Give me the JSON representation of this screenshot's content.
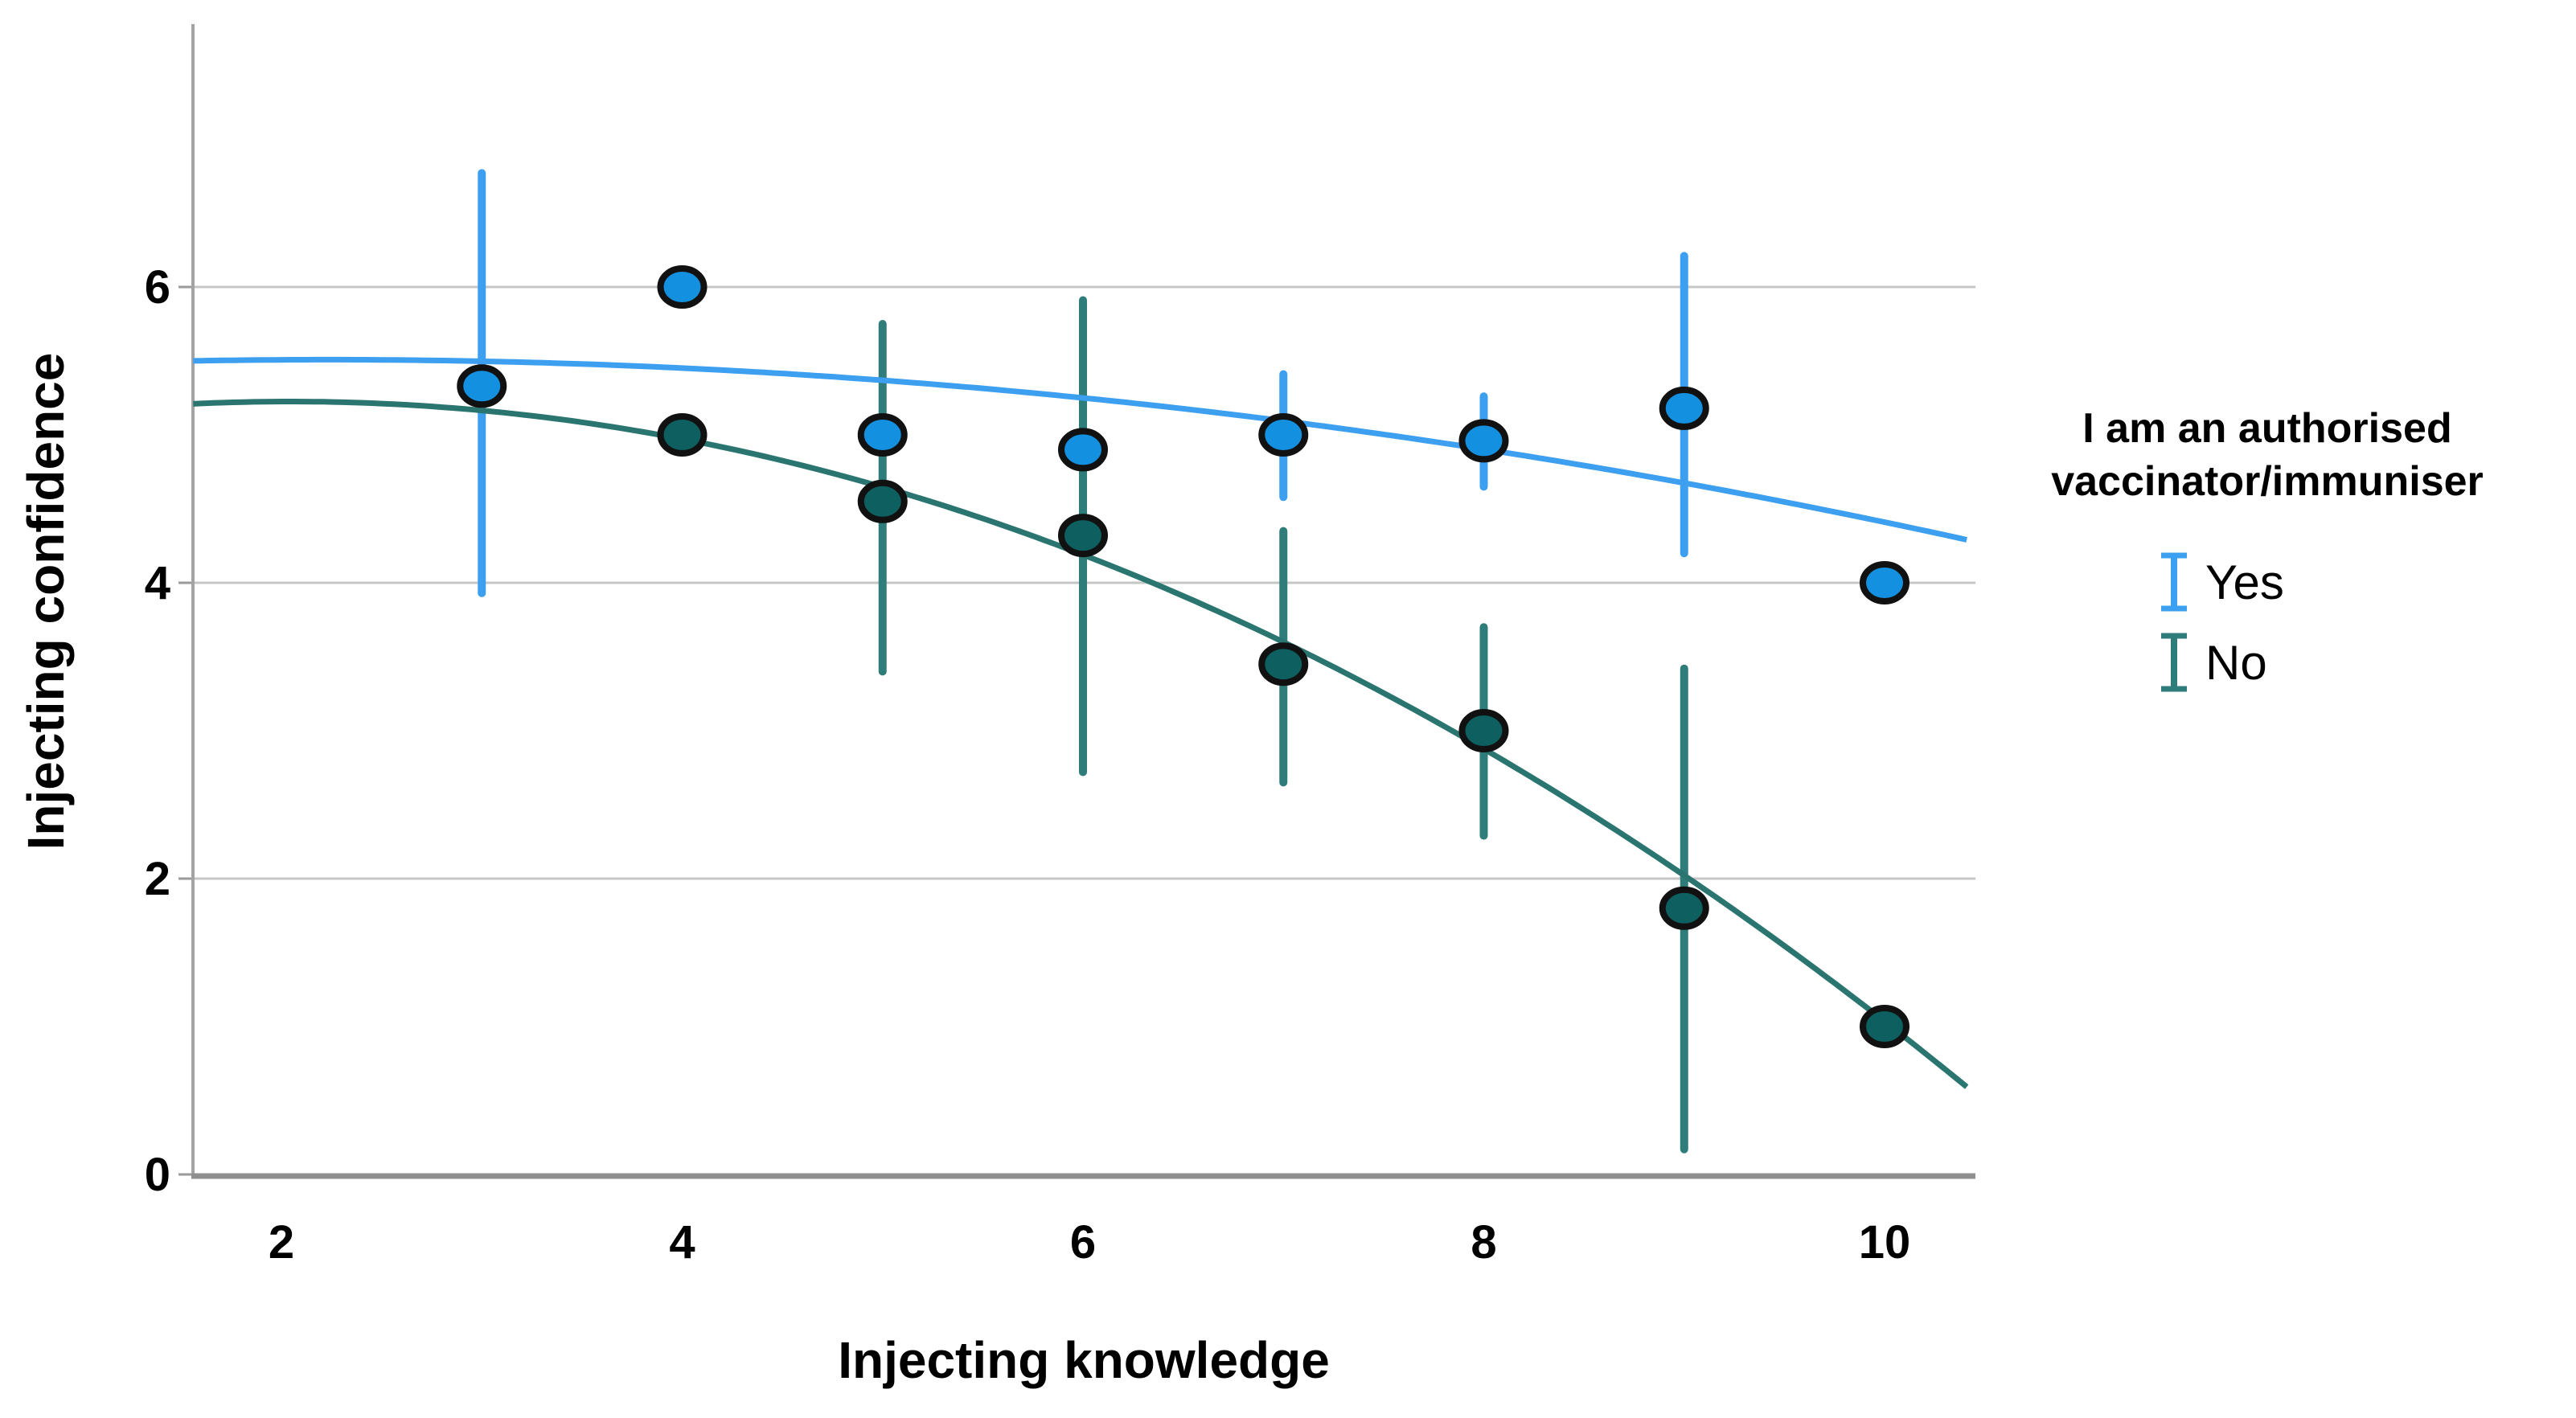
{
  "chart_data": {
    "type": "scatter",
    "title": "",
    "xlabel": "Injecting knowledge",
    "ylabel": "Injecting confidence",
    "x_ticks": [
      2,
      4,
      6,
      8,
      10
    ],
    "y_ticks": [
      0,
      2,
      4,
      6
    ],
    "xlim": [
      1.56,
      10.45
    ],
    "ylim": [
      0,
      7.78
    ],
    "grid": "horizontal-only",
    "colors": {
      "gridline": "#c6c6c6",
      "x_axis": "#8f8f8f",
      "y_axis": "#a3a3a3",
      "tick_mark": "#9a9a9a",
      "marker_outline": "#111111",
      "text": "#000000"
    },
    "legend": {
      "position": "right",
      "title_lines": [
        "I am an authorised",
        "vaccinator/immuniser"
      ],
      "entries": [
        {
          "label": "Yes",
          "color": "#3d9ff0",
          "icon": "error-bar-icon"
        },
        {
          "label": "No",
          "color": "#2e7d7a",
          "icon": "error-bar-icon"
        }
      ]
    },
    "series": [
      {
        "name": "Yes",
        "marker_color": "#1490e0",
        "bar_color": "#3d9ff0",
        "line_color": "#3d9ff0",
        "points": [
          {
            "x": 3,
            "y": 5.33,
            "ci_low": 3.93,
            "ci_high": 6.77
          },
          {
            "x": 4,
            "y": 6.0
          },
          {
            "x": 5,
            "y": 5.0
          },
          {
            "x": 6,
            "y": 4.9
          },
          {
            "x": 7,
            "y": 5.0,
            "ci_low": 4.58,
            "ci_high": 5.41
          },
          {
            "x": 8,
            "y": 4.96,
            "ci_low": 4.65,
            "ci_high": 5.26
          },
          {
            "x": 9,
            "y": 5.18,
            "ci_low": 4.2,
            "ci_high": 6.21
          },
          {
            "x": 10,
            "y": 4.0
          }
        ],
        "fit_quadratic": {
          "a": 5.418,
          "b": 0.0812,
          "c": -0.0182
        }
      },
      {
        "name": "No",
        "marker_color": "#0d5f60",
        "bar_color": "#2e7d7a",
        "line_color": "#2b7571",
        "points": [
          {
            "x": 4,
            "y": 5.0
          },
          {
            "x": 5,
            "y": 4.55,
            "ci_low": 3.4,
            "ci_high": 5.75
          },
          {
            "x": 6,
            "y": 4.32,
            "ci_low": 2.72,
            "ci_high": 5.91
          },
          {
            "x": 7,
            "y": 3.45,
            "ci_low": 2.65,
            "ci_high": 4.35
          },
          {
            "x": 8,
            "y": 3.0,
            "ci_low": 2.29,
            "ci_high": 3.7
          },
          {
            "x": 9,
            "y": 1.8,
            "ci_low": 0.17,
            "ci_high": 3.42
          },
          {
            "x": 10,
            "y": 1.0
          }
        ],
        "fit_quadratic": {
          "a": 4.949,
          "b": 0.2706,
          "c": -0.0662
        }
      }
    ]
  }
}
